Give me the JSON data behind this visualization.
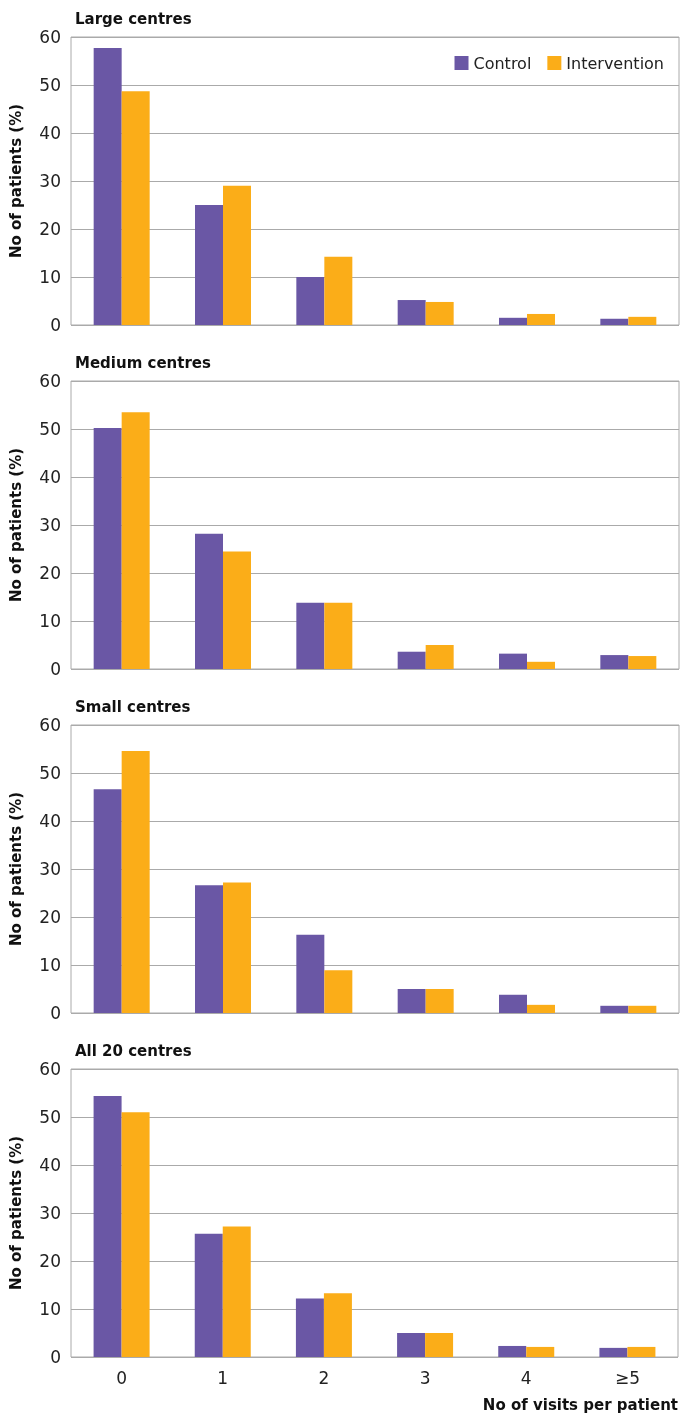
{
  "chart_data": [
    {
      "type": "bar",
      "title": "Large centres",
      "ylabel": "No of patients (%)",
      "categories": [
        null,
        null,
        null,
        null,
        null,
        null
      ],
      "series": [
        {
          "name": "Control",
          "color": "#6a57a5",
          "values": [
            57.7,
            25,
            10,
            5.2,
            1.5,
            1.3
          ]
        },
        {
          "name": "Intervention",
          "color": "#fbad18",
          "values": [
            48.7,
            29,
            14.2,
            4.8,
            2.3,
            1.7
          ]
        }
      ],
      "ylim": [
        0,
        60
      ],
      "yticks": [
        0,
        10,
        20,
        30,
        40,
        50,
        60
      ],
      "grid": "y",
      "legend": "top right",
      "tick_labels": "y"
    },
    {
      "type": "bar",
      "title": "Medium centres",
      "ylabel": "No of patients (%)",
      "categories": [
        null,
        null,
        null,
        null,
        null,
        null
      ],
      "series": [
        {
          "color": "#6a57a5",
          "values": [
            50.2,
            28.2,
            13.8,
            3.6,
            3.2,
            2.9
          ]
        },
        {
          "color": "#fbad18",
          "values": [
            53.5,
            24.5,
            13.8,
            5,
            1.5,
            2.7
          ]
        }
      ],
      "ylim": [
        0,
        60
      ],
      "yticks": [
        0,
        10,
        20,
        30,
        40,
        50,
        60
      ],
      "grid": "y",
      "legend": false,
      "tick_labels": "y"
    },
    {
      "type": "bar",
      "title": "Small centres",
      "ylabel": "No of patients (%)",
      "categories": [
        null,
        null,
        null,
        null,
        null,
        null
      ],
      "series": [
        {
          "color": "#6a57a5",
          "values": [
            46.6,
            26.6,
            16.3,
            5,
            3.8,
            1.5
          ]
        },
        {
          "color": "#fbad18",
          "values": [
            54.6,
            27.2,
            8.9,
            5,
            1.7,
            1.5
          ]
        }
      ],
      "ylim": [
        0,
        60
      ],
      "yticks": [
        0,
        10,
        20,
        30,
        40,
        50,
        60
      ],
      "grid": "y",
      "legend": false,
      "tick_labels": "y"
    },
    {
      "type": "bar",
      "title": "All 20 centres",
      "ylabel": "No of patients (%)",
      "xlabel": "No of visits per patient",
      "categories": [
        "0",
        "1",
        "2",
        "3",
        "4",
        "≥5"
      ],
      "series": [
        {
          "color": "#6a57a5",
          "values": [
            54.4,
            25.7,
            12.2,
            5,
            2.3,
            1.9
          ]
        },
        {
          "color": "#fbad18",
          "values": [
            51,
            27.2,
            13.3,
            5,
            2.1,
            2.1
          ]
        }
      ],
      "ylim": [
        0,
        60
      ],
      "yticks": [
        0,
        10,
        20,
        30,
        40,
        50,
        60
      ],
      "grid": "y",
      "legend": false
    }
  ]
}
